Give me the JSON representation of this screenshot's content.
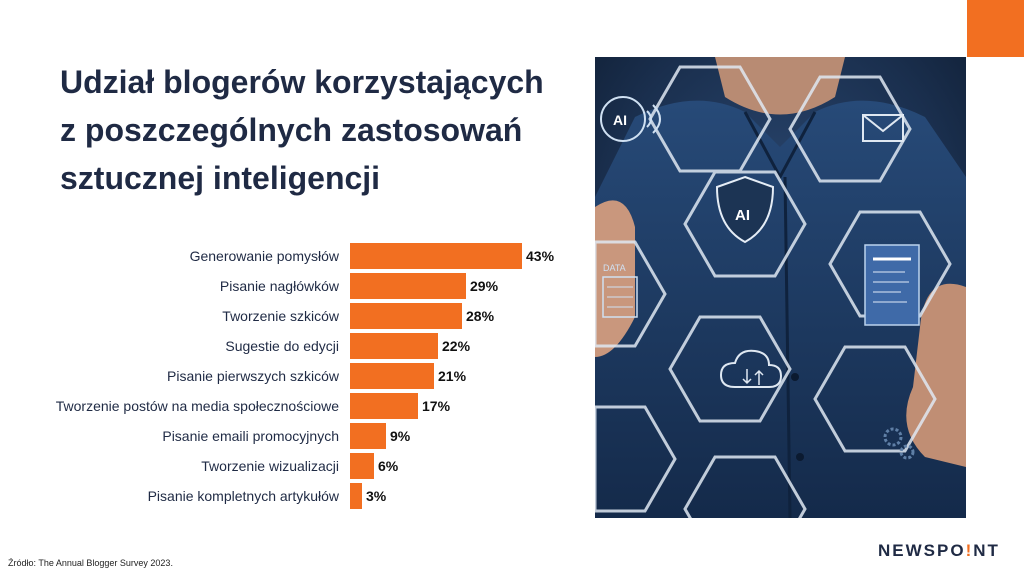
{
  "title_lines": [
    "Udział blogerów korzystających",
    "z poszczególnych zastosowań",
    "sztucznej inteligencji"
  ],
  "chart_data": {
    "type": "bar",
    "orientation": "horizontal",
    "categories": [
      "Generowanie pomysłów",
      "Pisanie nagłówków",
      "Tworzenie szkiców",
      "Sugestie do edycji",
      "Pisanie pierwszych szkiców",
      "Tworzenie postów na media społecznościowe",
      "Pisanie emaili promocyjnych",
      "Tworzenie wizualizacji",
      "Pisanie kompletnych artykułów"
    ],
    "values": [
      43,
      29,
      28,
      22,
      21,
      17,
      9,
      6,
      3
    ],
    "value_labels": [
      "43%",
      "29%",
      "28%",
      "22%",
      "21%",
      "17%",
      "9%",
      "6%",
      "3%"
    ],
    "unit": "%",
    "bar_color": "#f26f21"
  },
  "photo": {
    "description_icons": [
      "ai-head-icon",
      "mail-icon",
      "ai-shield-icon",
      "data-icon",
      "document-icon",
      "cloud-icon",
      "gear-icon"
    ],
    "labels": {
      "ai_head": "AI",
      "shield": "AI",
      "data": "DATA"
    }
  },
  "source": "Źródło: The Annual Blogger Survey 2023.",
  "brand": {
    "before": "NEWSPO",
    "dot_letter": "!",
    "after": "NT"
  },
  "colors": {
    "accent": "#f26f21",
    "navy": "#1f2a44"
  }
}
